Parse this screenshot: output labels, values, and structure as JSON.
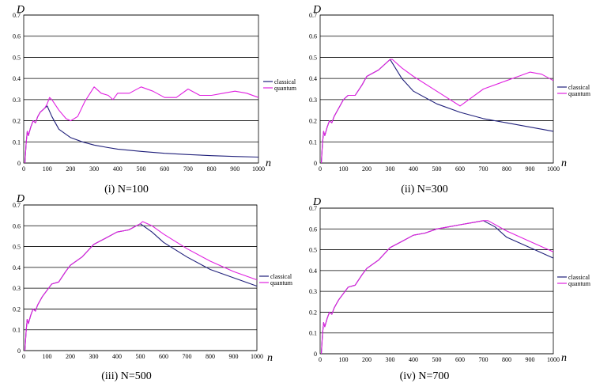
{
  "chart_data": [
    {
      "type": "line",
      "caption": "(i) N=100",
      "ylabel": "D",
      "xlabel": "n",
      "xlim": [
        0,
        1000
      ],
      "ylim": [
        0,
        0.7
      ],
      "xticks": [
        "0",
        "100",
        "200",
        "300",
        "400",
        "500",
        "600",
        "700",
        "800",
        "900",
        "1000"
      ],
      "yticks": [
        "0",
        "0.1",
        "0.2",
        "0.3",
        "0.4",
        "0.5",
        "0.6",
        "0.7"
      ],
      "grid": "horizontal",
      "legend_position": "right",
      "series": [
        {
          "name": "classical",
          "color": "#1f1f7a",
          "x": [
            5,
            10,
            15,
            20,
            30,
            40,
            50,
            60,
            70,
            80,
            90,
            100,
            120,
            150,
            200,
            250,
            300,
            350,
            400,
            500,
            600,
            700,
            800,
            900,
            1000
          ],
          "y": [
            0,
            0.09,
            0.15,
            0.13,
            0.17,
            0.2,
            0.19,
            0.22,
            0.24,
            0.25,
            0.26,
            0.27,
            0.22,
            0.16,
            0.12,
            0.1,
            0.085,
            0.075,
            0.066,
            0.055,
            0.046,
            0.04,
            0.035,
            0.031,
            0.028
          ]
        },
        {
          "name": "quantum",
          "color": "#e020e0",
          "x": [
            5,
            10,
            15,
            20,
            30,
            40,
            50,
            60,
            70,
            80,
            90,
            100,
            110,
            120,
            150,
            180,
            200,
            230,
            260,
            300,
            330,
            360,
            380,
            400,
            450,
            500,
            550,
            600,
            650,
            700,
            750,
            800,
            850,
            900,
            950,
            1000
          ],
          "y": [
            0,
            0.09,
            0.15,
            0.13,
            0.17,
            0.2,
            0.19,
            0.22,
            0.24,
            0.25,
            0.26,
            0.28,
            0.31,
            0.3,
            0.25,
            0.21,
            0.2,
            0.22,
            0.29,
            0.36,
            0.33,
            0.32,
            0.3,
            0.33,
            0.33,
            0.36,
            0.34,
            0.31,
            0.31,
            0.35,
            0.32,
            0.32,
            0.33,
            0.34,
            0.33,
            0.31
          ]
        }
      ]
    },
    {
      "type": "line",
      "caption": "(ii) N=300",
      "ylabel": "D",
      "xlabel": "n",
      "xlim": [
        0,
        1000
      ],
      "ylim": [
        0,
        0.7
      ],
      "xticks": [
        "0",
        "100",
        "200",
        "300",
        "400",
        "500",
        "600",
        "700",
        "800",
        "900",
        "1000"
      ],
      "yticks": [
        "0",
        "0.1",
        "0.2",
        "0.3",
        "0.4",
        "0.5",
        "0.6",
        "0.7"
      ],
      "grid": "horizontal",
      "legend_position": "right",
      "series": [
        {
          "name": "classical",
          "color": "#1f1f7a",
          "x": [
            5,
            10,
            15,
            20,
            30,
            40,
            50,
            60,
            70,
            80,
            100,
            120,
            150,
            180,
            200,
            250,
            300,
            350,
            400,
            500,
            600,
            700,
            800,
            900,
            1000
          ],
          "y": [
            0,
            0.09,
            0.15,
            0.13,
            0.17,
            0.2,
            0.19,
            0.22,
            0.24,
            0.26,
            0.3,
            0.32,
            0.32,
            0.37,
            0.41,
            0.44,
            0.49,
            0.4,
            0.34,
            0.28,
            0.24,
            0.21,
            0.19,
            0.17,
            0.15
          ]
        },
        {
          "name": "quantum",
          "color": "#e020e0",
          "x": [
            5,
            10,
            15,
            20,
            30,
            40,
            50,
            60,
            70,
            80,
            100,
            120,
            150,
            180,
            200,
            250,
            300,
            310,
            350,
            400,
            500,
            600,
            650,
            700,
            800,
            850,
            900,
            950,
            1000
          ],
          "y": [
            0,
            0.09,
            0.15,
            0.13,
            0.17,
            0.2,
            0.19,
            0.22,
            0.24,
            0.26,
            0.3,
            0.32,
            0.32,
            0.37,
            0.41,
            0.44,
            0.49,
            0.49,
            0.45,
            0.41,
            0.34,
            0.27,
            0.31,
            0.35,
            0.39,
            0.41,
            0.43,
            0.42,
            0.39
          ]
        }
      ]
    },
    {
      "type": "line",
      "caption": "(iii) N=500",
      "ylabel": "D",
      "xlabel": "n",
      "xlim": [
        0,
        1000
      ],
      "ylim": [
        0,
        0.7
      ],
      "xticks": [
        "0",
        "100",
        "200",
        "300",
        "400",
        "500",
        "600",
        "700",
        "800",
        "900",
        "1000"
      ],
      "yticks": [
        "0",
        "0.1",
        "0.2",
        "0.3",
        "0.4",
        "0.5",
        "0.6",
        "0.7"
      ],
      "grid": "horizontal",
      "legend_position": "right",
      "series": [
        {
          "name": "classical",
          "color": "#1f1f7a",
          "x": [
            5,
            10,
            15,
            20,
            30,
            40,
            50,
            60,
            70,
            80,
            100,
            120,
            150,
            180,
            200,
            250,
            300,
            350,
            400,
            450,
            500,
            550,
            600,
            700,
            800,
            900,
            1000
          ],
          "y": [
            0,
            0.09,
            0.15,
            0.13,
            0.17,
            0.2,
            0.19,
            0.22,
            0.24,
            0.26,
            0.29,
            0.32,
            0.33,
            0.38,
            0.41,
            0.45,
            0.51,
            0.54,
            0.57,
            0.58,
            0.61,
            0.57,
            0.52,
            0.45,
            0.39,
            0.35,
            0.31
          ]
        },
        {
          "name": "quantum",
          "color": "#e020e0",
          "x": [
            5,
            10,
            15,
            20,
            30,
            40,
            50,
            60,
            70,
            80,
            100,
            120,
            150,
            180,
            200,
            250,
            300,
            350,
            400,
            450,
            500,
            510,
            550,
            600,
            700,
            800,
            900,
            1000
          ],
          "y": [
            0,
            0.09,
            0.15,
            0.13,
            0.17,
            0.2,
            0.19,
            0.22,
            0.24,
            0.26,
            0.29,
            0.32,
            0.33,
            0.38,
            0.41,
            0.45,
            0.51,
            0.54,
            0.57,
            0.58,
            0.61,
            0.62,
            0.6,
            0.56,
            0.49,
            0.43,
            0.38,
            0.34
          ]
        }
      ]
    },
    {
      "type": "line",
      "caption": "(iv) N=700",
      "ylabel": "D",
      "xlabel": "n",
      "xlim": [
        0,
        1000
      ],
      "ylim": [
        0,
        0.7
      ],
      "xticks": [
        "0",
        "100",
        "200",
        "300",
        "400",
        "500",
        "600",
        "700",
        "800",
        "900",
        "1000"
      ],
      "yticks": [
        "0",
        "0.1",
        "0.2",
        "0.3",
        "0.4",
        "0.5",
        "0.6",
        "0.7"
      ],
      "grid": "horizontal",
      "legend_position": "right",
      "series": [
        {
          "name": "classical",
          "color": "#1f1f7a",
          "x": [
            5,
            10,
            15,
            20,
            30,
            40,
            50,
            60,
            70,
            80,
            100,
            120,
            150,
            180,
            200,
            250,
            300,
            350,
            400,
            450,
            500,
            550,
            600,
            650,
            700,
            750,
            800,
            900,
            1000
          ],
          "y": [
            0,
            0.09,
            0.15,
            0.13,
            0.17,
            0.2,
            0.19,
            0.22,
            0.24,
            0.26,
            0.29,
            0.32,
            0.33,
            0.38,
            0.41,
            0.45,
            0.51,
            0.54,
            0.57,
            0.58,
            0.6,
            0.61,
            0.62,
            0.63,
            0.64,
            0.61,
            0.56,
            0.51,
            0.46
          ]
        },
        {
          "name": "quantum",
          "color": "#e020e0",
          "x": [
            5,
            10,
            15,
            20,
            30,
            40,
            50,
            60,
            70,
            80,
            100,
            120,
            150,
            180,
            200,
            250,
            300,
            350,
            400,
            450,
            500,
            550,
            600,
            650,
            700,
            720,
            800,
            900,
            1000
          ],
          "y": [
            0,
            0.09,
            0.15,
            0.13,
            0.17,
            0.2,
            0.19,
            0.22,
            0.24,
            0.26,
            0.29,
            0.32,
            0.33,
            0.38,
            0.41,
            0.45,
            0.51,
            0.54,
            0.57,
            0.58,
            0.6,
            0.61,
            0.62,
            0.63,
            0.64,
            0.64,
            0.59,
            0.54,
            0.49
          ]
        }
      ]
    }
  ]
}
